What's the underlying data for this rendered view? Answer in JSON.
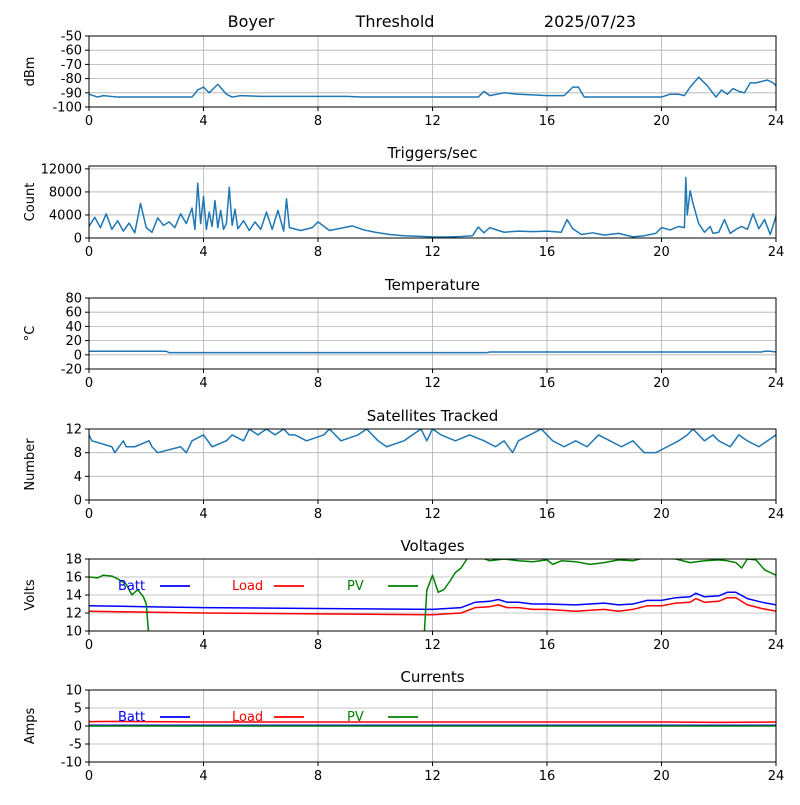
{
  "header": {
    "station": "Boyer",
    "mode": "Threshold",
    "date": "2025/07/23"
  },
  "chart_data": [
    {
      "id": "signal",
      "type": "line",
      "title": "",
      "xlabel": "",
      "ylabel": "dBm",
      "xlim": [
        0,
        24
      ],
      "ylim": [
        -100,
        -50
      ],
      "xticks": [
        0,
        4,
        8,
        12,
        16,
        20,
        24
      ],
      "yticks": [
        -100,
        -90,
        -80,
        -70,
        -60,
        -50
      ],
      "grid": true,
      "colors": [
        "#1f77b4"
      ],
      "series": [
        {
          "x": [
            0,
            0.3,
            0.5,
            1,
            2,
            3,
            3.6,
            3.8,
            4.0,
            4.2,
            4.5,
            4.8,
            5.0,
            5.3,
            6,
            7,
            8,
            9,
            9.5,
            10,
            11,
            12,
            13,
            13.6,
            13.8,
            14,
            14.5,
            15,
            15.5,
            16,
            16.6,
            16.9,
            17.1,
            17.3,
            18,
            19,
            20,
            20.3,
            20.6,
            20.8,
            21.0,
            21.3,
            21.6,
            21.9,
            22.1,
            22.3,
            22.5,
            22.7,
            22.9,
            23.1,
            23.3,
            23.5,
            23.7,
            23.9,
            24
          ],
          "values": [
            -91,
            -93,
            -92,
            -93,
            -93,
            -93,
            -93,
            -88,
            -86,
            -90,
            -84,
            -91,
            -93,
            -92,
            -92.5,
            -92.5,
            -92.5,
            -92.5,
            -93,
            -93,
            -93,
            -93,
            -93,
            -93,
            -89,
            -92,
            -90,
            -91,
            -91.5,
            -92,
            -92,
            -86,
            -86,
            -93,
            -93,
            -93,
            -93,
            -91,
            -91,
            -92,
            -86,
            -79,
            -85,
            -93,
            -88,
            -91,
            -87,
            -89,
            -90,
            -83,
            -83,
            -82,
            -81,
            -83,
            -85
          ]
        }
      ]
    },
    {
      "id": "triggers",
      "type": "line",
      "title": "Triggers/sec",
      "xlabel": "",
      "ylabel": "Count",
      "xlim": [
        0,
        24
      ],
      "ylim": [
        0,
        12500
      ],
      "xticks": [
        0,
        4,
        8,
        12,
        16,
        20,
        24
      ],
      "yticks": [
        0,
        4000,
        8000,
        12000
      ],
      "grid": true,
      "colors": [
        "#1f77b4"
      ],
      "series": [
        {
          "x": [
            0,
            0.2,
            0.4,
            0.6,
            0.8,
            1.0,
            1.2,
            1.4,
            1.6,
            1.8,
            2.0,
            2.2,
            2.4,
            2.6,
            2.8,
            3.0,
            3.2,
            3.4,
            3.6,
            3.7,
            3.8,
            3.9,
            4.0,
            4.1,
            4.2,
            4.3,
            4.4,
            4.5,
            4.6,
            4.7,
            4.8,
            4.9,
            5.0,
            5.1,
            5.2,
            5.4,
            5.6,
            5.8,
            6.0,
            6.2,
            6.4,
            6.6,
            6.8,
            6.9,
            7.0,
            7.4,
            7.8,
            8.0,
            8.4,
            8.8,
            9.2,
            9.6,
            10.0,
            10.5,
            11.0,
            11.5,
            12.0,
            12.5,
            13.0,
            13.4,
            13.6,
            13.8,
            14.0,
            14.5,
            15.0,
            15.5,
            16.0,
            16.5,
            16.7,
            16.9,
            17.2,
            17.6,
            18.0,
            18.5,
            19.0,
            19.4,
            19.8,
            20.0,
            20.3,
            20.6,
            20.8,
            20.85,
            20.9,
            21.0,
            21.1,
            21.3,
            21.5,
            21.7,
            21.8,
            22.0,
            22.2,
            22.4,
            22.6,
            22.8,
            23.0,
            23.2,
            23.4,
            23.6,
            23.8,
            24
          ],
          "values": [
            2000,
            3600,
            1800,
            4200,
            1500,
            3000,
            1200,
            2600,
            900,
            6000,
            1800,
            1000,
            3500,
            2200,
            2800,
            1800,
            4200,
            2500,
            5200,
            1500,
            9500,
            2500,
            7200,
            1500,
            4500,
            2000,
            6500,
            1800,
            4800,
            1500,
            2500,
            8800,
            2200,
            5000,
            1600,
            3000,
            1300,
            2800,
            1500,
            4500,
            1500,
            4800,
            1200,
            6800,
            1800,
            1300,
            1800,
            2800,
            1300,
            1700,
            2100,
            1400,
            1000,
            600,
            400,
            300,
            200,
            180,
            250,
            400,
            1900,
            900,
            1800,
            1000,
            1200,
            1100,
            1200,
            1000,
            3200,
            1600,
            600,
            900,
            500,
            800,
            200,
            400,
            800,
            1800,
            1400,
            2000,
            1800,
            10500,
            4000,
            8200,
            6000,
            2500,
            1000,
            2000,
            800,
            1000,
            3200,
            800,
            1500,
            2000,
            1500,
            4200,
            1600,
            3200,
            600,
            3800
          ]
        }
      ]
    },
    {
      "id": "temperature",
      "type": "line",
      "title": "Temperature",
      "xlabel": "",
      "ylabel": "°C",
      "xlim": [
        0,
        24
      ],
      "ylim": [
        -20,
        80
      ],
      "xticks": [
        0,
        4,
        8,
        12,
        16,
        20,
        24
      ],
      "yticks": [
        -20,
        0,
        20,
        40,
        60,
        80
      ],
      "grid": true,
      "colors": [
        "#1f77b4"
      ],
      "series": [
        {
          "x": [
            0,
            2.7,
            2.8,
            13.9,
            14.0,
            23.5,
            23.6,
            23.8,
            24
          ],
          "values": [
            5,
            5,
            3,
            3,
            4,
            4,
            5,
            5,
            4
          ]
        }
      ]
    },
    {
      "id": "satellites",
      "type": "line",
      "title": "Satellites Tracked",
      "xlabel": "",
      "ylabel": "Number",
      "xlim": [
        0,
        24
      ],
      "ylim": [
        0,
        12
      ],
      "xticks": [
        0,
        4,
        8,
        12,
        16,
        20,
        24
      ],
      "yticks": [
        0,
        4,
        8,
        12
      ],
      "grid": true,
      "colors": [
        "#1f77b4"
      ],
      "series": [
        {
          "x": [
            0,
            0.1,
            0.8,
            0.9,
            1.2,
            1.3,
            1.6,
            2.1,
            2.2,
            2.4,
            3.2,
            3.4,
            3.6,
            4.0,
            4.3,
            4.8,
            5.0,
            5.4,
            5.6,
            5.9,
            6.2,
            6.5,
            6.8,
            7.0,
            7.2,
            7.6,
            8.2,
            8.4,
            8.8,
            9.4,
            9.7,
            10.1,
            10.4,
            11.0,
            11.3,
            11.6,
            11.8,
            12.0,
            12.3,
            12.8,
            13.3,
            13.8,
            14.2,
            14.5,
            14.8,
            15.0,
            15.4,
            15.8,
            16.2,
            16.6,
            17.0,
            17.4,
            17.8,
            18.2,
            18.6,
            19.0,
            19.4,
            19.8,
            20.2,
            20.6,
            20.9,
            21.1,
            21.5,
            21.8,
            22.0,
            22.4,
            22.7,
            23.0,
            23.4,
            23.7,
            24
          ],
          "values": [
            11,
            10,
            9,
            8,
            10,
            9,
            9,
            10,
            9,
            8,
            9,
            8,
            10,
            11,
            9,
            10,
            11,
            10,
            12,
            11,
            12,
            11,
            12,
            11,
            11,
            10,
            11,
            12,
            10,
            11,
            12,
            10,
            9,
            10,
            11,
            12,
            10,
            12,
            11,
            10,
            11,
            10,
            9,
            10,
            8,
            10,
            11,
            12,
            10,
            9,
            10,
            9,
            11,
            10,
            9,
            10,
            8,
            8,
            9,
            10,
            11,
            12,
            10,
            11,
            10,
            9,
            11,
            10,
            9,
            10,
            11
          ]
        }
      ]
    },
    {
      "id": "voltages",
      "type": "line",
      "title": "Voltages",
      "xlabel": "",
      "ylabel": "Volts",
      "xlim": [
        0,
        24
      ],
      "ylim": [
        10,
        18
      ],
      "xticks": [
        0,
        4,
        8,
        12,
        16,
        20,
        24
      ],
      "yticks": [
        10,
        12,
        14,
        16,
        18
      ],
      "grid": true,
      "legend": "top-left",
      "colors": [
        "#0000ff",
        "#ff0000",
        "#008000"
      ],
      "series": [
        {
          "name": "Batt",
          "x": [
            0,
            2,
            4,
            8,
            12,
            13,
            13.5,
            14,
            14.3,
            14.6,
            15,
            15.5,
            16,
            17,
            18,
            18.5,
            19,
            19.5,
            20,
            20.5,
            21,
            21.2,
            21.5,
            22,
            22.3,
            22.6,
            23,
            23.5,
            24
          ],
          "values": [
            12.8,
            12.7,
            12.6,
            12.5,
            12.4,
            12.6,
            13.2,
            13.3,
            13.5,
            13.2,
            13.2,
            13.0,
            13.0,
            12.9,
            13.1,
            12.9,
            13.0,
            13.4,
            13.4,
            13.7,
            13.8,
            14.2,
            13.8,
            13.9,
            14.3,
            14.3,
            13.6,
            13.2,
            12.9
          ]
        },
        {
          "name": "Load",
          "x": [
            0,
            2,
            4,
            8,
            12,
            13,
            13.5,
            14,
            14.3,
            14.6,
            15,
            15.5,
            16,
            17,
            18,
            18.5,
            19,
            19.5,
            20,
            20.5,
            21,
            21.2,
            21.5,
            22,
            22.3,
            22.6,
            23,
            23.5,
            24
          ],
          "values": [
            12.2,
            12.1,
            12.0,
            11.9,
            11.8,
            12.0,
            12.6,
            12.7,
            12.9,
            12.6,
            12.6,
            12.4,
            12.4,
            12.2,
            12.4,
            12.2,
            12.4,
            12.8,
            12.8,
            13.1,
            13.2,
            13.6,
            13.2,
            13.3,
            13.7,
            13.7,
            12.9,
            12.5,
            12.2
          ]
        },
        {
          "name": "PV",
          "x": [
            0,
            0.3,
            0.5,
            0.8,
            1.0,
            1.3,
            1.5,
            1.7,
            1.9,
            2.0,
            2.1,
            11.7,
            11.8,
            12.0,
            12.2,
            12.4,
            12.6,
            12.8,
            13.0,
            13.2,
            13.5,
            14,
            14.5,
            15,
            15.5,
            16,
            16.2,
            16.5,
            17,
            17.5,
            18,
            18.5,
            19,
            19.5,
            20,
            20.5,
            21,
            21.5,
            22,
            22.3,
            22.6,
            22.8,
            23.0,
            23.3,
            23.6,
            24
          ],
          "values": [
            16.0,
            15.9,
            16.2,
            16.1,
            15.8,
            15.2,
            14.0,
            14.6,
            13.8,
            13.0,
            9.0,
            9.0,
            14.5,
            16.2,
            14.3,
            14.6,
            15.5,
            16.5,
            17.0,
            18.0,
            18.4,
            17.8,
            18.0,
            17.8,
            17.7,
            17.9,
            17.4,
            17.8,
            17.7,
            17.4,
            17.6,
            17.9,
            17.8,
            18.2,
            18.1,
            18.0,
            17.6,
            17.8,
            17.9,
            17.8,
            17.6,
            17.0,
            18.0,
            17.9,
            16.8,
            16.2
          ]
        }
      ]
    },
    {
      "id": "currents",
      "type": "line",
      "title": "Currents",
      "xlabel": "",
      "ylabel": "Amps",
      "xlim": [
        0,
        24
      ],
      "ylim": [
        -10,
        10
      ],
      "xticks": [
        0,
        4,
        8,
        12,
        16,
        20,
        24
      ],
      "yticks": [
        -10,
        -5,
        0,
        5,
        10
      ],
      "grid": true,
      "legend": "top-left",
      "colors": [
        "#0000ff",
        "#ff0000",
        "#008000"
      ],
      "series": [
        {
          "name": "Batt",
          "x": [
            0,
            24
          ],
          "values": [
            0.2,
            0.2
          ]
        },
        {
          "name": "Load",
          "x": [
            0,
            1,
            2,
            4,
            8,
            12,
            16,
            20,
            22,
            24
          ],
          "values": [
            1.2,
            1.3,
            1.2,
            1.1,
            1.1,
            1.1,
            1.1,
            1.1,
            1.0,
            1.1
          ]
        },
        {
          "name": "PV",
          "x": [
            0,
            24
          ],
          "values": [
            0,
            0
          ]
        }
      ]
    }
  ]
}
